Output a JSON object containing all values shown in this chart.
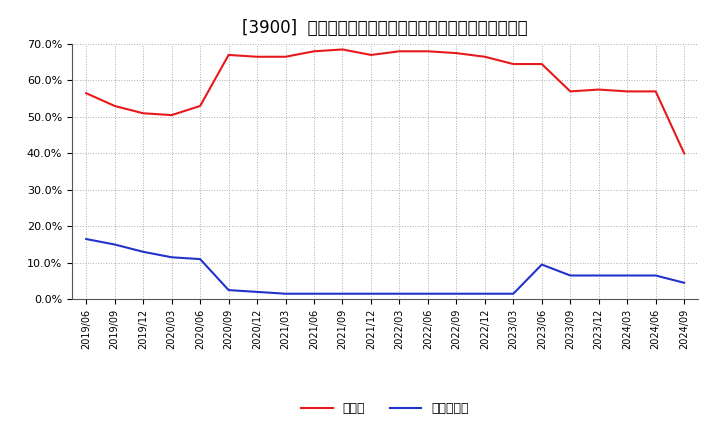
{
  "title": "[3900]  現顕金、有利子負債の総資産に対する比率の推移",
  "x_labels": [
    "2019/06",
    "2019/09",
    "2019/12",
    "2020/03",
    "2020/06",
    "2020/09",
    "2020/12",
    "2021/03",
    "2021/06",
    "2021/09",
    "2021/12",
    "2022/03",
    "2022/06",
    "2022/09",
    "2022/12",
    "2023/03",
    "2023/06",
    "2023/09",
    "2023/12",
    "2024/03",
    "2024/06",
    "2024/09"
  ],
  "cash_ratio": [
    0.565,
    0.53,
    0.51,
    0.505,
    0.53,
    0.67,
    0.665,
    0.665,
    0.68,
    0.685,
    0.67,
    0.68,
    0.68,
    0.675,
    0.665,
    0.645,
    0.645,
    0.57,
    0.575,
    0.57,
    0.57,
    0.4
  ],
  "debt_ratio": [
    0.165,
    0.15,
    0.13,
    0.115,
    0.11,
    0.025,
    0.02,
    0.015,
    0.015,
    0.015,
    0.015,
    0.015,
    0.015,
    0.015,
    0.015,
    0.015,
    0.095,
    0.065,
    0.065,
    0.065,
    0.065,
    0.045
  ],
  "cash_color": "#e8191c",
  "debt_color": "#2233cc",
  "legend_cash": "現顕金",
  "legend_debt": "有利子負債",
  "ylim": [
    0.0,
    0.7
  ],
  "yticks": [
    0.0,
    0.1,
    0.2,
    0.3,
    0.4,
    0.5,
    0.6,
    0.7
  ],
  "bg_color": "#ffffff",
  "grid_color": "#999999",
  "title_fontsize": 12
}
